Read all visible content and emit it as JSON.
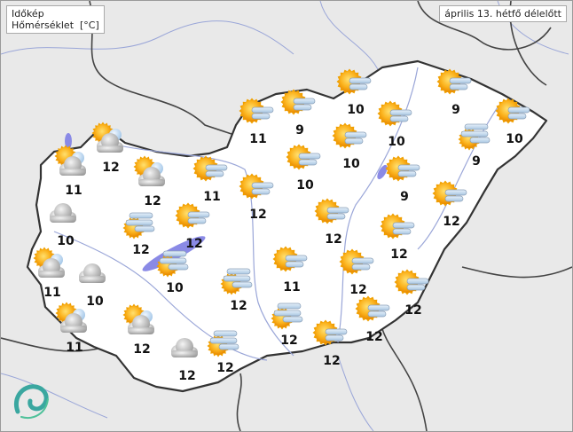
{
  "header": {
    "brand": "Időkép",
    "layer": "Hőmérséklet  [°C]",
    "datetime": "április 13. hétfő délelőtt"
  },
  "colors": {
    "land": "#ffffff",
    "outside": "#e9e9e9",
    "border": "#333333",
    "water": "#8a8ae6",
    "sun": "#f5a300",
    "fog": "#c7dcef"
  },
  "stations": [
    {
      "icon": "sun-fog",
      "temp": "10"
    },
    {
      "icon": "sun-fog",
      "temp": "9"
    },
    {
      "icon": "sun-fog",
      "temp": "9"
    },
    {
      "icon": "sun-fog",
      "temp": "11"
    },
    {
      "icon": "sun-fog",
      "temp": "10"
    },
    {
      "icon": "sun-fog",
      "temp": "10"
    },
    {
      "icon": "sun-fog",
      "temp": "10"
    },
    {
      "icon": "fog-sun",
      "temp": "9"
    },
    {
      "icon": "sun-cloud",
      "temp": "12"
    },
    {
      "icon": "sun-cloud",
      "temp": "11"
    },
    {
      "icon": "sun-cloud",
      "temp": "12"
    },
    {
      "icon": "sun-fog",
      "temp": "11"
    },
    {
      "icon": "sun-fog",
      "temp": "10"
    },
    {
      "icon": "sun-fog",
      "temp": "9"
    },
    {
      "icon": "sun-fog",
      "temp": "12"
    },
    {
      "icon": "sun-fog",
      "temp": "12"
    },
    {
      "icon": "cloud",
      "temp": "10"
    },
    {
      "icon": "fog-sun",
      "temp": "12"
    },
    {
      "icon": "sun-fog",
      "temp": "12"
    },
    {
      "icon": "sun-fog",
      "temp": "12"
    },
    {
      "icon": "sun-fog",
      "temp": "12"
    },
    {
      "icon": "sun-cloud",
      "temp": "11"
    },
    {
      "icon": "cloud",
      "temp": "10"
    },
    {
      "icon": "fog-sun",
      "temp": "10"
    },
    {
      "icon": "fog-sun",
      "temp": "12"
    },
    {
      "icon": "sun-fog",
      "temp": "11"
    },
    {
      "icon": "sun-fog",
      "temp": "12"
    },
    {
      "icon": "sun-fog",
      "temp": "12"
    },
    {
      "icon": "sun-cloud",
      "temp": "11"
    },
    {
      "icon": "sun-cloud",
      "temp": "12"
    },
    {
      "icon": "fog-sun",
      "temp": "12"
    },
    {
      "icon": "sun-fog",
      "temp": "12"
    },
    {
      "icon": "cloud",
      "temp": "12"
    },
    {
      "icon": "fog-sun",
      "temp": "12"
    },
    {
      "icon": "sun-fog",
      "temp": "12"
    }
  ],
  "logo": "idokep-swirl-logo"
}
